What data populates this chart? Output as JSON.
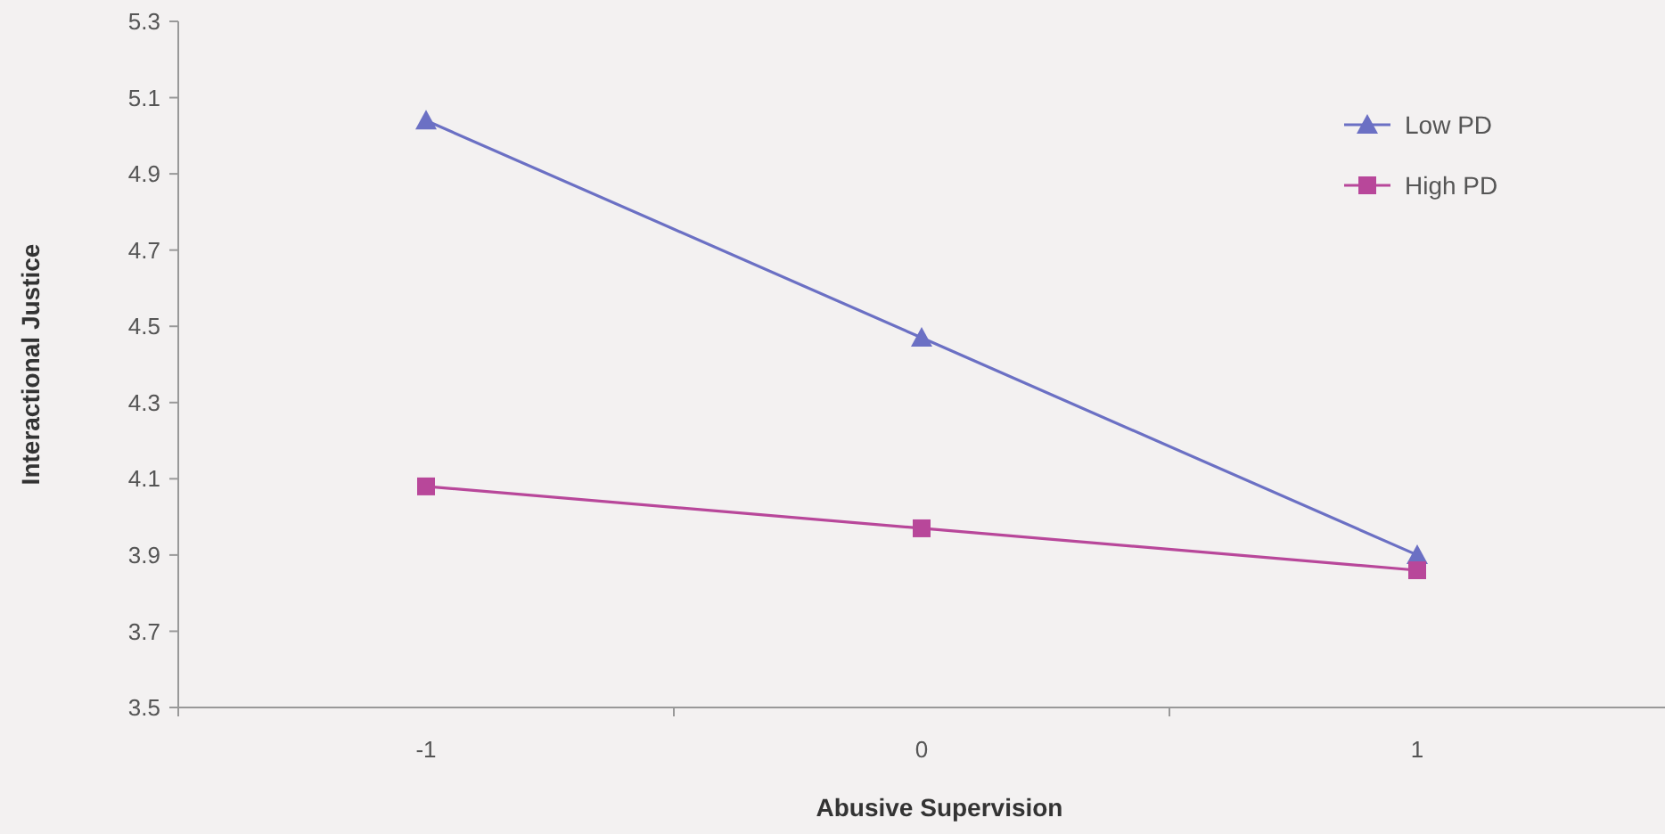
{
  "chart_data": {
    "type": "line",
    "xlabel": "Abusive Supervision",
    "ylabel": "Interactional Justice",
    "categories": [
      "-1",
      "0",
      "1"
    ],
    "ylim": [
      3.5,
      5.3
    ],
    "yticks": [
      {
        "value": 3.5,
        "label": "3.5"
      },
      {
        "value": 3.7,
        "label": "3.7"
      },
      {
        "value": 3.9,
        "label": "3.9"
      },
      {
        "value": 4.1,
        "label": "4.1"
      },
      {
        "value": 4.3,
        "label": "4.3"
      },
      {
        "value": 4.5,
        "label": "4.5"
      },
      {
        "value": 4.7,
        "label": "4.7"
      },
      {
        "value": 4.9,
        "label": "4.9"
      },
      {
        "value": 5.1,
        "label": "5.1"
      },
      {
        "value": 5.3,
        "label": "5.3"
      }
    ],
    "grid": false,
    "legend": "top right",
    "line_style": "solid",
    "series": [
      {
        "name": "Low PD",
        "color": "#6b70c4",
        "marker": "triangle",
        "values": [
          5.04,
          4.47,
          3.9
        ]
      },
      {
        "name": "High PD",
        "color": "#b8479a",
        "marker": "square",
        "values": [
          4.08,
          3.97,
          3.86
        ]
      }
    ]
  }
}
